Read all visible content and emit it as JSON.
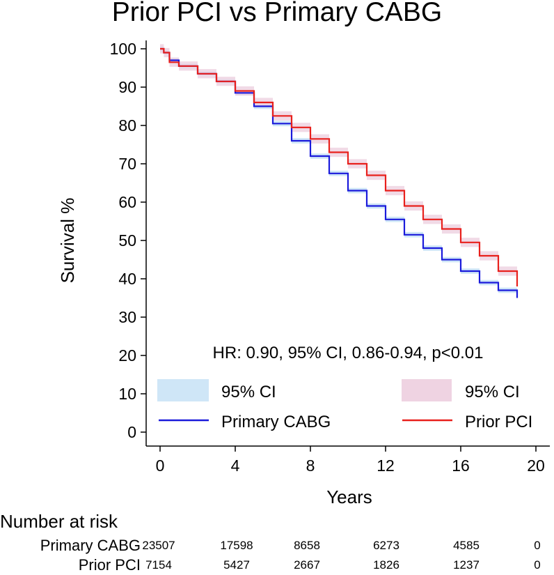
{
  "chart_data": {
    "type": "line",
    "title": "Prior PCI vs Primary CABG",
    "xlabel": "Years",
    "ylabel": "Survival %",
    "xlim": [
      0,
      20
    ],
    "ylim": [
      0,
      100
    ],
    "x_ticks": [
      0,
      4,
      8,
      12,
      16,
      20
    ],
    "y_ticks": [
      0,
      10,
      20,
      30,
      40,
      50,
      60,
      70,
      80,
      90,
      100
    ],
    "grid": false,
    "annotation": "HR: 0.90, 95% CI, 0.86-0.94, p<0.01",
    "series": [
      {
        "name": "Primary CABG",
        "color": "#1a1adb",
        "ci_color": "#cfe6f7",
        "ci_label": "95% CI",
        "ci_halfwidth": 0.7,
        "x": [
          0,
          0.2,
          0.5,
          1,
          2,
          3,
          4,
          5,
          6,
          7,
          8,
          9,
          10,
          11,
          12,
          13,
          14,
          15,
          16,
          17,
          18,
          19
        ],
        "y": [
          100,
          99,
          97,
          95.5,
          93.5,
          91.5,
          88.5,
          85,
          80.5,
          76,
          72,
          67.5,
          63,
          59,
          55.5,
          51.5,
          48,
          45,
          42,
          39,
          37,
          35
        ]
      },
      {
        "name": "Prior PCI",
        "color": "#e8201c",
        "ci_color": "#efd3e2",
        "ci_label": "95% CI",
        "ci_halfwidth": 1.2,
        "x": [
          0,
          0.2,
          0.5,
          1,
          2,
          3,
          4,
          5,
          6,
          7,
          8,
          9,
          10,
          11,
          12,
          13,
          14,
          15,
          16,
          17,
          18,
          19
        ],
        "y": [
          100,
          99,
          96.5,
          95.5,
          93.5,
          91.5,
          89,
          86,
          82.5,
          79.5,
          76.5,
          73,
          70,
          67,
          63,
          59,
          55.5,
          53,
          49.5,
          46,
          42,
          38
        ]
      }
    ],
    "legend": {
      "placement": "bottom",
      "entries": [
        "95% CI",
        "95% CI",
        "Primary CABG",
        "Prior PCI"
      ]
    }
  },
  "risk_table": {
    "title": "Number at risk",
    "times": [
      0,
      4,
      8,
      12,
      16,
      20
    ],
    "rows": [
      {
        "label": "Primary CABG",
        "values": [
          "23507",
          "17598",
          "8658",
          "6273",
          "4585",
          "0"
        ]
      },
      {
        "label": "Prior PCI",
        "values": [
          "7154",
          "5427",
          "2667",
          "1826",
          "1237",
          "0"
        ]
      }
    ]
  }
}
